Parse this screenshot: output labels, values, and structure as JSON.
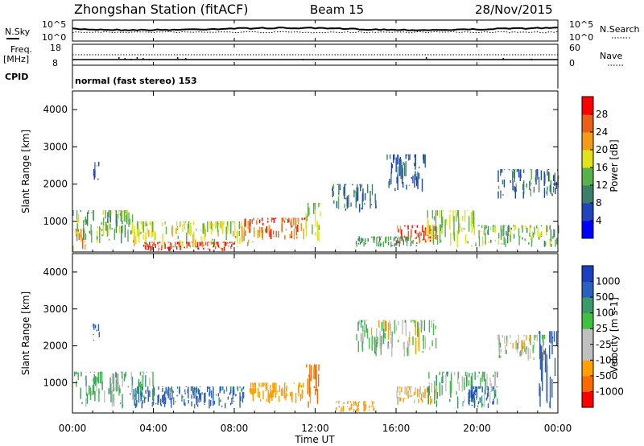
{
  "header": {
    "station": "Zhongshan Station (fitACF)",
    "beam": "Beam 15",
    "date": "28/Nov/2015"
  },
  "sky_panel": {
    "left_label": "N.Sky",
    "right_label": "N.Search",
    "ticks": [
      "10^5",
      "10^0"
    ]
  },
  "freq_panel": {
    "left_label_1": "Freq.",
    "left_label_2": "[MHz]",
    "right_label": "Nave",
    "left_ticks": [
      "18",
      "8"
    ],
    "right_ticks": [
      "60",
      "0"
    ]
  },
  "cpid": {
    "label": "CPID",
    "mode": "normal (fast stereo) 153"
  },
  "power_panel": {
    "ylabel": "Slant Range [km]",
    "yticks": [
      "4000",
      "3000",
      "2000",
      "1000"
    ],
    "colorbar_label": "Power [dB]",
    "colorbar_ticks": [
      "28",
      "24",
      "20",
      "16",
      "12",
      "8",
      "4"
    ]
  },
  "velocity_panel": {
    "ylabel": "Slant Range [km]",
    "yticks": [
      "4000",
      "3000",
      "2000",
      "1000"
    ],
    "colorbar_label": "Velocity [m s-1]",
    "colorbar_ticks": [
      "1000",
      "500",
      "100",
      "25",
      "-25",
      "-100",
      "-500",
      "-1000"
    ]
  },
  "xaxis": {
    "label": "Time UT",
    "ticks": [
      "00:00",
      "04:00",
      "08:00",
      "12:00",
      "16:00",
      "20:00",
      "00:00"
    ]
  },
  "chart_data": {
    "type": "heatmap",
    "x_range_hours": [
      0,
      24
    ],
    "y_range_km": [
      180,
      4500
    ],
    "power_scale_db": [
      0,
      32
    ],
    "velocity_scale": [
      -1200,
      1200
    ],
    "power_colors": [
      "#0000ff",
      "#2244bb",
      "#3b7f6a",
      "#57b24a",
      "#e2e21a",
      "#f39c1a",
      "#e8601a",
      "#ff0000"
    ],
    "velocity_colors": [
      "#ff0000",
      "#ff6a00",
      "#ffa000",
      "#c0c0c0",
      "#c0c0c0",
      "#40c040",
      "#3a9a6a",
      "#2a60c0",
      "#1a40c0"
    ],
    "power_regions": [
      {
        "t": [
          0,
          0.6
        ],
        "r": [
          200,
          800
        ],
        "db": 24
      },
      {
        "t": [
          0,
          3
        ],
        "r": [
          400,
          1300
        ],
        "db": 14
      },
      {
        "t": [
          1.0,
          1.3
        ],
        "r": [
          2100,
          2600
        ],
        "db": 8
      },
      {
        "t": [
          3,
          9
        ],
        "r": [
          300,
          1000
        ],
        "db": 18
      },
      {
        "t": [
          3.5,
          8
        ],
        "r": [
          200,
          450
        ],
        "db": 28
      },
      {
        "t": [
          8.5,
          11.5
        ],
        "r": [
          500,
          1100
        ],
        "db": 26
      },
      {
        "t": [
          11.5,
          12.3
        ],
        "r": [
          300,
          1500
        ],
        "db": 16
      },
      {
        "t": [
          12.8,
          15
        ],
        "r": [
          1200,
          2000
        ],
        "db": 9
      },
      {
        "t": [
          14,
          17
        ],
        "r": [
          300,
          600
        ],
        "db": 12
      },
      {
        "t": [
          16,
          18
        ],
        "r": [
          400,
          900
        ],
        "db": 27
      },
      {
        "t": [
          15.5,
          17.5
        ],
        "r": [
          1800,
          2800
        ],
        "db": 8
      },
      {
        "t": [
          17.5,
          20
        ],
        "r": [
          300,
          1300
        ],
        "db": 16
      },
      {
        "t": [
          20,
          24
        ],
        "r": [
          300,
          900
        ],
        "db": 14
      },
      {
        "t": [
          21,
          24
        ],
        "r": [
          1600,
          2400
        ],
        "db": 9
      }
    ],
    "velocity_regions": [
      {
        "t": [
          0,
          4
        ],
        "r": [
          300,
          1300
        ],
        "v": 80
      },
      {
        "t": [
          1.0,
          1.3
        ],
        "r": [
          2100,
          2600
        ],
        "v": 800
      },
      {
        "t": [
          3,
          8.5
        ],
        "r": [
          300,
          900
        ],
        "v": 600
      },
      {
        "t": [
          8.5,
          11.5
        ],
        "r": [
          400,
          1000
        ],
        "v": -300
      },
      {
        "t": [
          11.5,
          12.3
        ],
        "r": [
          300,
          1500
        ],
        "v": -600
      },
      {
        "t": [
          13,
          15
        ],
        "r": [
          200,
          500
        ],
        "v": -200
      },
      {
        "t": [
          14,
          18
        ],
        "r": [
          1700,
          2700
        ],
        "v": 0
      },
      {
        "t": [
          16,
          18
        ],
        "r": [
          400,
          900
        ],
        "v": -150
      },
      {
        "t": [
          17.5,
          21
        ],
        "r": [
          300,
          1300
        ],
        "v": 80
      },
      {
        "t": [
          19.5,
          21
        ],
        "r": [
          300,
          900
        ],
        "v": 900
      },
      {
        "t": [
          21,
          23.5
        ],
        "r": [
          1600,
          2300
        ],
        "v": 0
      },
      {
        "t": [
          23,
          24
        ],
        "r": [
          300,
          2400
        ],
        "v": 700
      }
    ]
  }
}
